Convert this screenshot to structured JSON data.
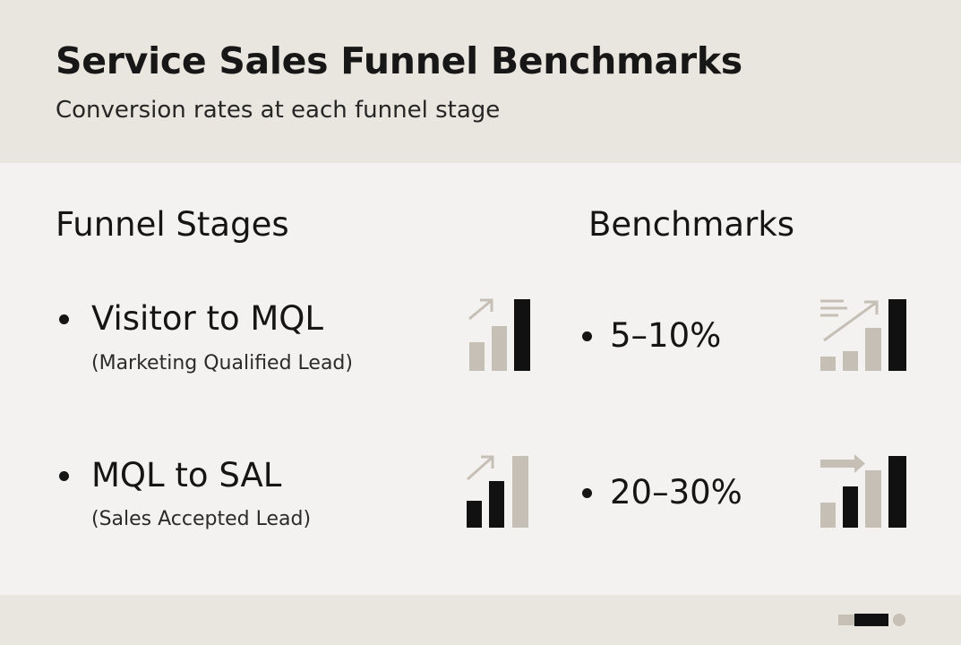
{
  "header": {
    "title": "Service Sales Funnel Benchmarks",
    "subtitle": "Conversion rates at each funnel stage"
  },
  "columns": {
    "stages_heading": "Funnel Stages",
    "benchmarks_heading": "Benchmarks"
  },
  "rows": [
    {
      "stage": "Visitor to MQL",
      "stage_detail": "(Marketing Qualified Lead)",
      "benchmark": "5–10%",
      "stage_icon": "bar-chart-arrow-up-icon",
      "benchmark_icon": "bar-chart-growth-arrow-icon"
    },
    {
      "stage": "MQL to SAL",
      "stage_detail": "(Sales Accepted Lead)",
      "benchmark": "20–30%",
      "stage_icon": "bar-chart-arrow-up-icon",
      "benchmark_icon": "bar-chart-arrow-right-icon"
    }
  ],
  "colors": {
    "header_bg": "#e9e5df",
    "body_bg": "#f3f2f0",
    "text": "#151515",
    "bar_dark": "#111111",
    "bar_light": "#c6bfb6"
  }
}
